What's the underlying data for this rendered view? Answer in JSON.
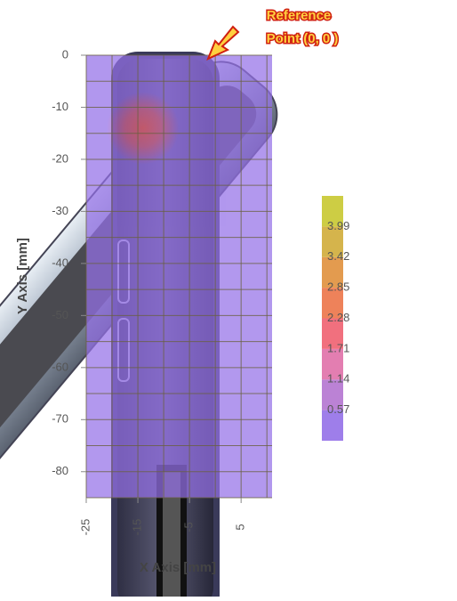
{
  "chart_data": {
    "type": "heatmap",
    "xlabel": "X Axis [mm]",
    "ylabel": "Y Axis [mm]",
    "annotation": [
      "Reference",
      "Point (0, 0 )"
    ],
    "xlim": [
      -25,
      11
    ],
    "ylim": [
      -85,
      0
    ],
    "xticks": [
      -25,
      -15,
      -5,
      5
    ],
    "yticks": [
      0,
      -10,
      -20,
      -30,
      -40,
      -50,
      -60,
      -70,
      -80
    ],
    "xminor": [
      -20,
      -10,
      0,
      10
    ],
    "yminor": [
      -5,
      -15,
      -25,
      -35,
      -45,
      -55,
      -65,
      -75,
      -85
    ],
    "grid": true,
    "base_value": 0.4,
    "hotspot": {
      "x": -14,
      "y": -14,
      "peak": 2.0,
      "radius": 7
    },
    "colorbar": {
      "lim": [
        0,
        4.56
      ],
      "ticks": [
        3.99,
        3.42,
        2.85,
        2.28,
        1.71,
        1.14,
        0.57
      ],
      "colors": [
        "#9470e8",
        "#b474d0",
        "#e070a8",
        "#f06070",
        "#ec7448",
        "#e0903c",
        "#d0ac38",
        "#c8c830"
      ]
    }
  }
}
